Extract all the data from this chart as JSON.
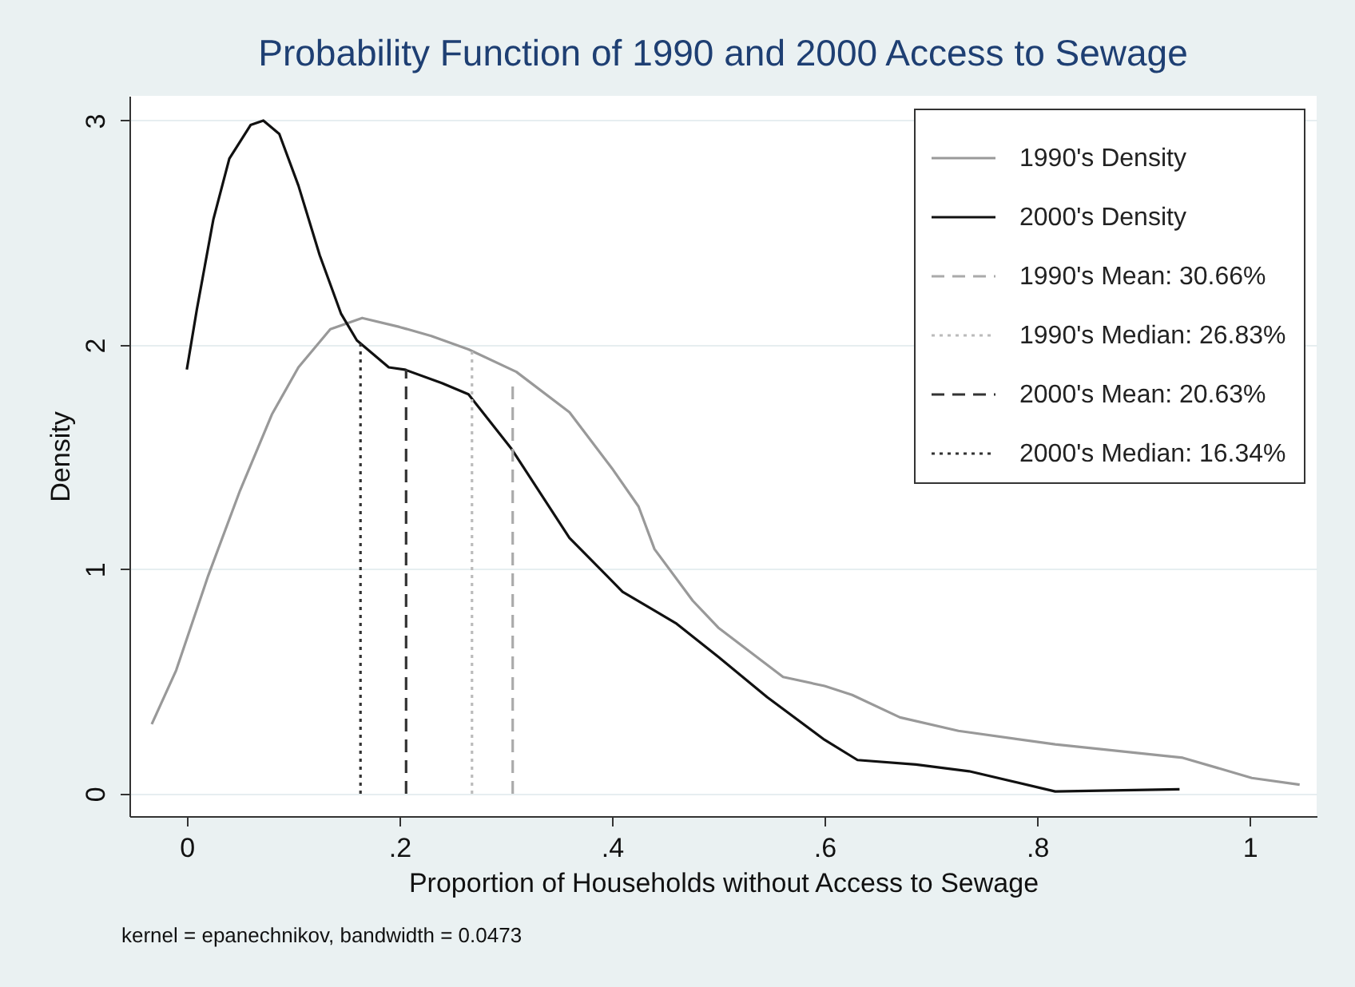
{
  "chart_data": {
    "type": "line",
    "title": "Probability Function of 1990 and 2000 Access to Sewage",
    "xlabel": "Proportion of Households without Access to Sewage",
    "ylabel": "Density",
    "annotations": [
      "kernel = epanechnikov, bandwidth = 0.0473"
    ],
    "xlim": [
      -0.054,
      1.063
    ],
    "ylim": [
      -0.1,
      3.11
    ],
    "xticks": [
      0,
      {
        "value": 0.2,
        "label": ".2"
      },
      {
        "value": 0.4,
        "label": ".4"
      },
      {
        "value": 0.6,
        "label": ".6"
      },
      {
        "value": 0.8,
        "label": ".8"
      },
      1
    ],
    "yticks": [
      0,
      1,
      2,
      3
    ],
    "grid": "y",
    "legend": "top right",
    "marker": "none",
    "series": [
      {
        "name": "1990's Density",
        "color": "#999999",
        "line_style": "solid",
        "x": [
          -0.033,
          -0.01,
          0.02,
          0.05,
          0.08,
          0.105,
          0.135,
          0.165,
          0.2,
          0.23,
          0.265,
          0.31,
          0.36,
          0.4,
          0.425,
          0.44,
          0.476,
          0.5,
          0.561,
          0.6,
          0.626,
          0.671,
          0.726,
          0.817,
          0.917,
          0.937,
          1.002,
          1.047
        ],
        "values": [
          0.31,
          0.55,
          0.97,
          1.35,
          1.69,
          1.9,
          2.07,
          2.12,
          2.08,
          2.04,
          1.98,
          1.88,
          1.7,
          1.45,
          1.28,
          1.09,
          0.86,
          0.74,
          0.52,
          0.48,
          0.44,
          0.34,
          0.28,
          0.22,
          0.17,
          0.16,
          0.07,
          0.04
        ]
      },
      {
        "name": "2000's Density",
        "color": "#111111",
        "line_style": "solid",
        "x": [
          0.0,
          0.0095,
          0.025,
          0.04,
          0.06,
          0.072,
          0.087,
          0.105,
          0.125,
          0.145,
          0.16,
          0.19,
          0.205,
          0.24,
          0.265,
          0.305,
          0.36,
          0.41,
          0.46,
          0.5,
          0.546,
          0.6,
          0.631,
          0.686,
          0.736,
          0.817,
          0.934
        ],
        "values": [
          1.89,
          2.16,
          2.56,
          2.83,
          2.98,
          3.0,
          2.94,
          2.71,
          2.4,
          2.14,
          2.02,
          1.9,
          1.89,
          1.83,
          1.78,
          1.54,
          1.14,
          0.9,
          0.76,
          0.61,
          0.43,
          0.24,
          0.15,
          0.13,
          0.1,
          0.01,
          0.02
        ]
      },
      {
        "name": "1990's Mean:    30.66%",
        "color": "#aaaaaa",
        "line_style": "dashed",
        "x": [
          0.3066,
          0.3066
        ],
        "values": [
          0,
          1.85
        ]
      },
      {
        "name": "1990's Median: 26.83%",
        "color": "#bbbbbb",
        "line_style": "dotted",
        "x": [
          0.2683,
          0.2683
        ],
        "values": [
          0,
          1.98
        ]
      },
      {
        "name": "2000's Mean:    20.63%",
        "color": "#333333",
        "line_style": "dashed",
        "x": [
          0.2063,
          0.2063
        ],
        "values": [
          0,
          1.89
        ]
      },
      {
        "name": "2000's Median: 16.34%",
        "color": "#333333",
        "line_style": "dotted",
        "x": [
          0.1634,
          0.1634
        ],
        "values": [
          0,
          2.02
        ]
      }
    ]
  }
}
